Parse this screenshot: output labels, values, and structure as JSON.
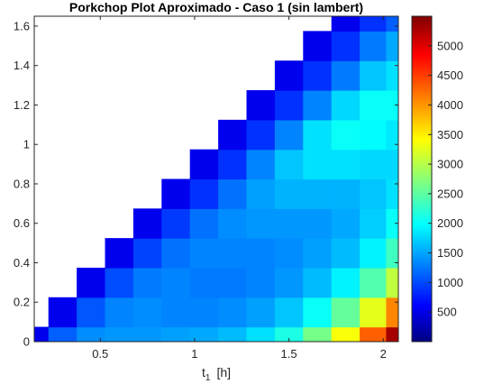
{
  "chart_data": {
    "type": "heatmap",
    "title": "Porkchop Plot Aproximado - Caso 1 (sin lambert)",
    "xlabel": "t",
    "xlabel_subscript": "1",
    "xlabel_unit": "[h]",
    "ylabel": "",
    "xlim": [
      0.15,
      2.08
    ],
    "ylim": [
      0,
      1.65
    ],
    "x_ticks": [
      0.5,
      1,
      1.5,
      2
    ],
    "x_tick_labels": [
      "0.5",
      "1",
      "1.5",
      "2"
    ],
    "y_ticks": [
      0,
      0.2,
      0.4,
      0.6,
      0.8,
      1,
      1.2,
      1.4,
      1.6
    ],
    "y_tick_labels": [
      "0",
      "0.2",
      "0.4",
      "0.6",
      "0.8",
      "1",
      "1.2",
      "1.4",
      "1.6"
    ],
    "colorbar": {
      "colormap": "jet",
      "clim": [
        0,
        5500
      ],
      "ticks": [
        500,
        1000,
        1500,
        2000,
        2500,
        3000,
        3500,
        4000,
        4500,
        5000
      ],
      "tick_labels": [
        "500",
        "1000",
        "1500",
        "2000",
        "2500",
        "3000",
        "3500",
        "4000",
        "4500",
        "5000"
      ]
    },
    "valid_region": "y <= x - 0.15",
    "x": [
      0.15,
      0.3,
      0.45,
      0.6,
      0.75,
      0.9,
      1.05,
      1.2,
      1.35,
      1.5,
      1.65,
      1.8,
      1.95,
      2.08
    ],
    "y": [
      0,
      0.15,
      0.3,
      0.45,
      0.6,
      0.75,
      0.9,
      1.05,
      1.2,
      1.35,
      1.5,
      1.65
    ],
    "z": [
      [
        600,
        1200,
        1450,
        1500,
        1500,
        1550,
        1600,
        1700,
        1900,
        2200,
        2700,
        3400,
        4300,
        5300
      ],
      [
        null,
        600,
        1150,
        1400,
        1450,
        1400,
        1400,
        1450,
        1550,
        1750,
        2100,
        2600,
        3300,
        4100
      ],
      [
        null,
        null,
        600,
        1100,
        1350,
        1400,
        1350,
        1350,
        1400,
        1500,
        1700,
        2000,
        2500,
        3100
      ],
      [
        null,
        null,
        null,
        600,
        1050,
        1300,
        1400,
        1400,
        1400,
        1450,
        1550,
        1700,
        2000,
        2400
      ],
      [
        null,
        null,
        null,
        null,
        600,
        1000,
        1300,
        1450,
        1500,
        1500,
        1500,
        1600,
        1800,
        2100
      ],
      [
        null,
        null,
        null,
        null,
        null,
        600,
        950,
        1300,
        1550,
        1650,
        1650,
        1650,
        1750,
        1900
      ],
      [
        null,
        null,
        null,
        null,
        null,
        null,
        600,
        950,
        1400,
        1750,
        1900,
        1900,
        1850,
        1850
      ],
      [
        null,
        null,
        null,
        null,
        null,
        null,
        null,
        600,
        950,
        1400,
        1900,
        2100,
        2050,
        1950
      ],
      [
        null,
        null,
        null,
        null,
        null,
        null,
        null,
        null,
        600,
        950,
        1400,
        1850,
        2100,
        2100
      ],
      [
        null,
        null,
        null,
        null,
        null,
        null,
        null,
        null,
        null,
        600,
        950,
        1350,
        1750,
        1900
      ],
      [
        null,
        null,
        null,
        null,
        null,
        null,
        null,
        null,
        null,
        null,
        600,
        950,
        1350,
        1600
      ],
      [
        null,
        null,
        null,
        null,
        null,
        null,
        null,
        null,
        null,
        null,
        null,
        600,
        950,
        1200
      ]
    ]
  }
}
